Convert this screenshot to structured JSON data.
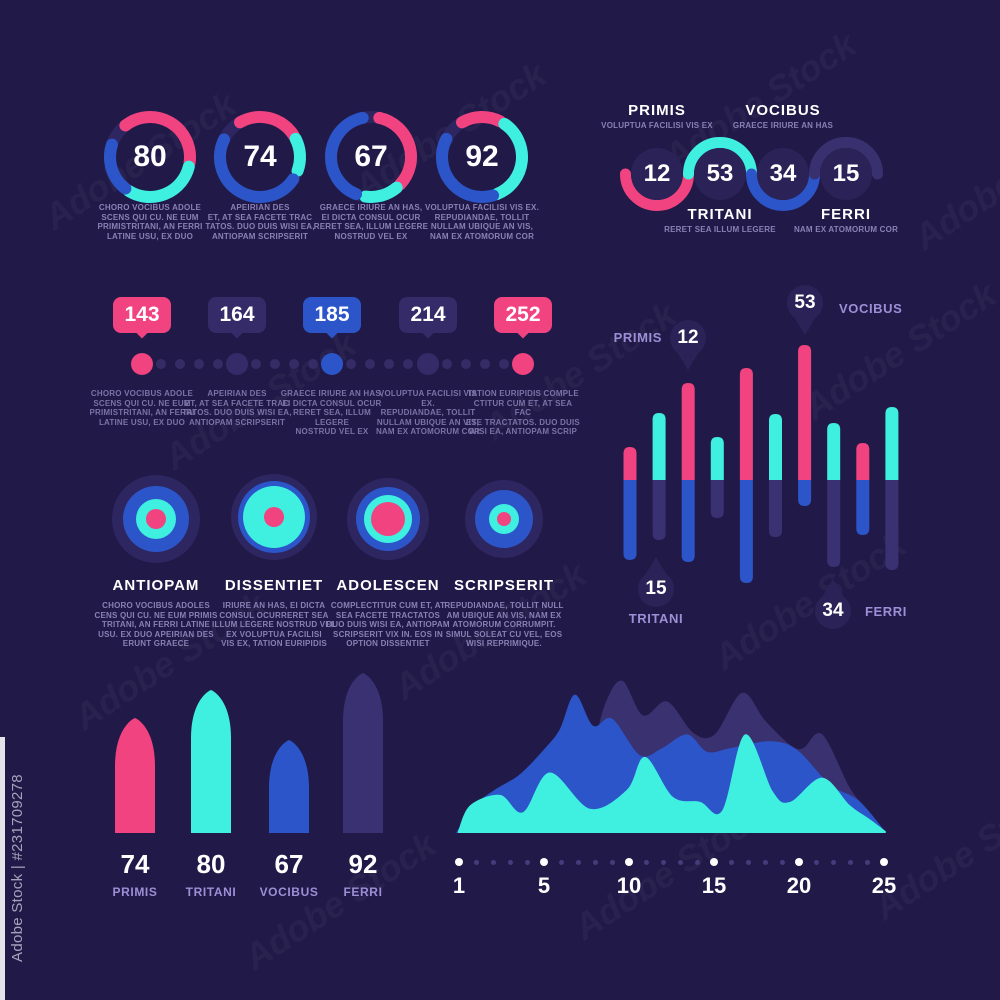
{
  "watermark": {
    "strip_label": "Adobe Stock | #231709278",
    "tile_label": "Adobe Stock"
  },
  "colors": {
    "bg": "#211a48",
    "pink": "#f0437f",
    "cyan": "#3ff0e1",
    "blue": "#2b55c8",
    "indigo": "#3a3173",
    "track": "#2e2660",
    "node": "#2b2357",
    "bubble": "#342b68",
    "dotline": "#352c66",
    "label": "#9d8fd6",
    "caption": "#8a80b4",
    "white": "#ffffff",
    "area_back": "#3a3170",
    "area_mid": "#2b55c8",
    "area_front": "#3ff0e1"
  },
  "chart_data": [
    {
      "id": "donuts",
      "type": "pie",
      "variant": "donut-progress",
      "values": [
        80,
        74,
        67,
        92
      ],
      "captions": [
        "CHORO VOCIBUS ADOLE\nSCENS QUI CU. NE EUM\nPRIMISTRITANI, AN FERRI\nLATINE USU, EX DUO",
        "APEIRIAN DES\nET, AT SEA FACETE TRAC\nTATOS. DUO DUIS WISI EA,\nANTIOPAM SCRIPSERIT",
        "GRAECE IRIURE AN HAS,\nEI DICTA CONSUL OCUR\nRERET SEA, ILLUM LEGERE\nNOSTRUD VEL EX",
        "VOLUPTUA FACILISI VIS EX.\nREPUDIANDAE, TOLLIT\nNULLAM UBIQUE AN VIS,\nNAM EX ATOMORUM COR"
      ],
      "segments": [
        [
          {
            "c": "pink",
            "a0": -38,
            "a1": 98
          },
          {
            "c": "cyan",
            "a0": 104,
            "a1": 212
          },
          {
            "c": "blue",
            "a0": 218,
            "a1": 288
          }
        ],
        [
          {
            "c": "pink",
            "a0": -30,
            "a1": 57
          },
          {
            "c": "cyan",
            "a0": 63,
            "a1": 110
          },
          {
            "c": "blue",
            "a0": 124,
            "a1": 296
          }
        ],
        [
          {
            "c": "pink",
            "a0": 12,
            "a1": 133
          },
          {
            "c": "cyan",
            "a0": 140,
            "a1": 188
          },
          {
            "c": "blue",
            "a0": 202,
            "a1": 348
          }
        ],
        [
          {
            "c": "pink",
            "a0": -30,
            "a1": 27
          },
          {
            "c": "cyan",
            "a0": 34,
            "a1": 158
          },
          {
            "c": "blue",
            "a0": 164,
            "a1": 297
          }
        ]
      ]
    },
    {
      "id": "wave",
      "type": "line",
      "variant": "wave-progress",
      "items": [
        {
          "value": 12,
          "label": "PRIMIS",
          "caption": "VOLUPTUA FACILISI VIS EX",
          "label_side": "top",
          "arc_side": "bottom",
          "color": "pink"
        },
        {
          "value": 53,
          "label": "TRITANI",
          "caption": "RERET SEA ILLUM LEGERE",
          "label_side": "bottom",
          "arc_side": "top",
          "color": "cyan"
        },
        {
          "value": 34,
          "label": "VOCIBUS",
          "caption": "GRAECE IRIURE AN HAS",
          "label_side": "top",
          "arc_side": "bottom",
          "color": "blue"
        },
        {
          "value": 15,
          "label": "FERRI",
          "caption": "NAM EX ATOMORUM COR",
          "label_side": "bottom",
          "arc_side": "top",
          "color": "indigo"
        }
      ]
    },
    {
      "id": "timeline",
      "type": "scatter",
      "variant": "timeline",
      "values": [
        143,
        164,
        185,
        214,
        252
      ],
      "colors": [
        "pink",
        "bubble",
        "blue",
        "bubble",
        "pink"
      ],
      "captions": [
        "CHORO VOCIBUS ADOLE\nSCENS QUI CU. NE EUM\nPRIMISTRITANI, AN FERRI\nLATINE USU, EX DUO",
        "APEIRIAN DES\nET, AT SEA FACETE TRAC\nTATOS. DUO DUIS WISI EA,\nANTIOPAM SCRIPSERIT",
        "GRAECE IRIURE AN HAS,\nEI DICTA CONSUL OCUR\nRERET SEA, ILLUM LEGERE\nNOSTRUD VEL EX",
        "VOLUPTUA FACILISI VIS EX.\nREPUDIANDAE, TOLLIT\nNULLAM UBIQUE AN VIS,\nNAM EX ATOMORUM COR",
        "TATION EURIPIDIS COMPLE\nCTITUR CUM ET, AT SEA FAC\nETE TRACTATOS. DUO DUIS\nWISI EA, ANTIOPAM SCRIP"
      ]
    },
    {
      "id": "pinbars",
      "type": "bar",
      "variant": "stacked-rounded",
      "baseline": 480,
      "bars": [
        {
          "above": 33,
          "below": 80,
          "top": "pink",
          "bottom": "blue"
        },
        {
          "above": 67,
          "below": 60,
          "top": "cyan",
          "bottom": "indigo"
        },
        {
          "above": 97,
          "below": 82,
          "top": "pink",
          "bottom": "blue"
        },
        {
          "above": 43,
          "below": 38,
          "top": "cyan",
          "bottom": "indigo"
        },
        {
          "above": 112,
          "below": 103,
          "top": "pink",
          "bottom": "blue"
        },
        {
          "above": 66,
          "below": 57,
          "top": "cyan",
          "bottom": "indigo"
        },
        {
          "above": 135,
          "below": 26,
          "top": "pink",
          "bottom": "blue"
        },
        {
          "above": 57,
          "below": 87,
          "top": "cyan",
          "bottom": "indigo"
        },
        {
          "above": 37,
          "below": 55,
          "top": "pink",
          "bottom": "blue"
        },
        {
          "above": 73,
          "below": 90,
          "top": "cyan",
          "bottom": "indigo"
        }
      ],
      "callouts": [
        {
          "label": "PRIMIS",
          "value": 12,
          "position": "top-left"
        },
        {
          "label": "VOCIBUS",
          "value": 53,
          "position": "top-right"
        },
        {
          "label": "TRITANI",
          "value": 15,
          "position": "bottom-left"
        },
        {
          "label": "FERRI",
          "value": 34,
          "position": "bottom-right"
        }
      ]
    },
    {
      "id": "targets",
      "type": "pie",
      "variant": "concentric",
      "items": [
        {
          "title": "ANTIOPAM",
          "radii": [
            44,
            33,
            20,
            10
          ],
          "caption": "CHORO VOCIBUS ADOLES\nCENS QUI CU. NE EUM PRIMIS\nTRITANI, AN FERRI LATINE\nUSU. EX DUO APEIRIAN DES\nERUNT GRAECE"
        },
        {
          "title": "DISSENTIET",
          "radii": [
            43,
            36,
            31,
            10
          ],
          "caption": "IRIURE AN HAS, EI DICTA\nCONSUL OCURRERET SEA\nILLUM LEGERE NOSTRUD VEL\nEX VOLUPTUA FACILISI\nVIS EX, TATION EURIPIDIS"
        },
        {
          "title": "ADOLESCEN",
          "radii": [
            41,
            32,
            24,
            17
          ],
          "caption": "COMPLECTITUR CUM ET, AT\nSEA FACETE TRACTATOS\nDUO DUIS WISI EA, ANTIOPAM\nSCRIPSERIT VIX IN. EOS IN\nOPTION DISSENTIET"
        },
        {
          "title": "SCRIPSERIT",
          "radii": [
            39,
            29,
            15,
            7
          ],
          "caption": "REPUDIANDAE, TOLLIT NULL\nAM UBIQUE AN VIS, NAM EX\nATOMORUM CORRUMPIT.\nSIMUL SOLEAT CU VEL, EOS\nWISI REPRIMIQUE."
        }
      ],
      "ring_colors": [
        "track",
        "blue",
        "cyan",
        "pink"
      ]
    },
    {
      "id": "columns",
      "type": "bar",
      "variant": "arch-column",
      "categories": [
        "PRIMIS",
        "TRITANI",
        "VOCIBUS",
        "FERRI"
      ],
      "values": [
        74,
        80,
        67,
        92
      ],
      "colors": [
        "pink",
        "cyan",
        "blue",
        "indigo"
      ],
      "heights": [
        115,
        143,
        93,
        160
      ]
    },
    {
      "id": "area",
      "type": "area",
      "x_ticks": [
        "1",
        "5",
        "10",
        "15",
        "20",
        "25"
      ],
      "series": [
        {
          "name": "back",
          "color": "area_back",
          "points": [
            [
              25.4,
              0
            ],
            [
              31.2,
              42
            ],
            [
              34.6,
              74
            ],
            [
              38.6,
              88
            ],
            [
              43.4,
              68
            ],
            [
              49,
              76
            ],
            [
              55,
              58
            ],
            [
              60,
              57
            ],
            [
              66.3,
              81
            ],
            [
              71.6,
              65
            ],
            [
              77.4,
              51
            ],
            [
              80.4,
              49
            ],
            [
              84.8,
              57
            ],
            [
              91.2,
              26
            ],
            [
              95.4,
              13
            ],
            [
              98.8,
              0
            ]
          ]
        },
        {
          "name": "middle",
          "color": "area_mid",
          "points": [
            [
              0.2,
              0
            ],
            [
              4.6,
              16
            ],
            [
              9.2,
              25
            ],
            [
              15,
              34
            ],
            [
              20.8,
              49
            ],
            [
              24.2,
              60
            ],
            [
              27.7,
              80
            ],
            [
              31.9,
              62
            ],
            [
              36.3,
              66
            ],
            [
              42.7,
              45
            ],
            [
              47.8,
              49
            ],
            [
              53.6,
              57
            ],
            [
              58.2,
              47
            ],
            [
              63.5,
              49
            ],
            [
              72.7,
              53
            ],
            [
              79,
              48
            ],
            [
              86.6,
              28
            ],
            [
              93.1,
              19
            ],
            [
              99,
              2
            ]
          ]
        },
        {
          "name": "front",
          "color": "area_front",
          "points": [
            [
              0.7,
              1
            ],
            [
              3.5,
              16
            ],
            [
              10.4,
              22
            ],
            [
              15.7,
              12
            ],
            [
              21.9,
              35
            ],
            [
              31.2,
              14
            ],
            [
              39.7,
              25
            ],
            [
              43.9,
              44
            ],
            [
              50.3,
              21
            ],
            [
              56.6,
              18
            ],
            [
              61.7,
              13
            ],
            [
              67,
              57
            ],
            [
              73.4,
              24
            ],
            [
              77.4,
              18
            ],
            [
              84.8,
              32
            ],
            [
              91.2,
              16
            ],
            [
              95.8,
              8
            ],
            [
              99.5,
              1
            ]
          ]
        }
      ]
    }
  ]
}
